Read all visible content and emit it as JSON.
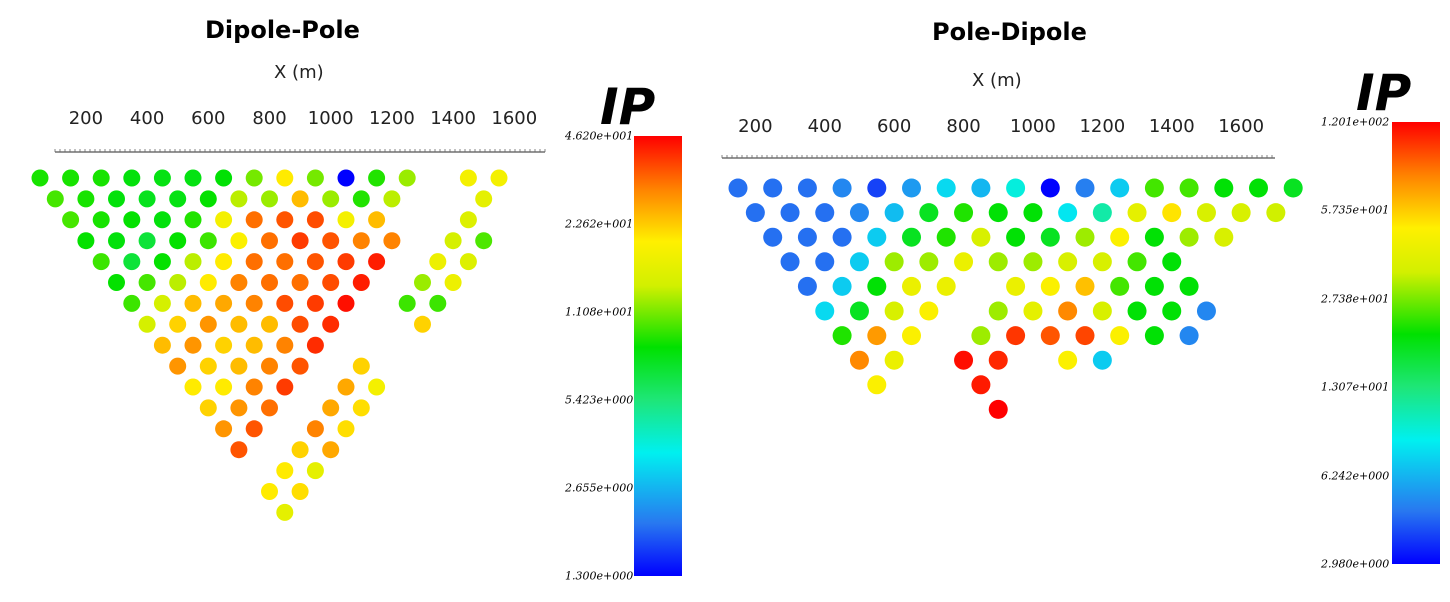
{
  "chart_data": [
    {
      "type": "scatter",
      "title": "Dipole-Pole",
      "xlabel": "X (m)",
      "x_ticks": [
        200,
        400,
        600,
        800,
        1000,
        1200,
        1400,
        1600
      ],
      "xlim": [
        50,
        1650
      ],
      "colorbar": {
        "title": "IP",
        "labels": [
          "4.620e+001",
          "2.262e+001",
          "1.108e+001",
          "5.423e+000",
          "2.655e+000",
          "1.300e+000"
        ],
        "min": 1.3,
        "max": 46.2,
        "scale": "log"
      },
      "rows": [
        {
          "level": 1,
          "x0": 50,
          "values": [
            8.8,
            8.8,
            8.8,
            8.0,
            7.8,
            7.8,
            8.2,
            11,
            20,
            11,
            1.3,
            9,
            12,
            null,
            18,
            18
          ]
        },
        {
          "level": 2,
          "x0": 100,
          "values": [
            9.8,
            8.8,
            8.0,
            7.5,
            7.8,
            8.4,
            13,
            12,
            24,
            12,
            9,
            13,
            null,
            null,
            16
          ]
        },
        {
          "level": 3,
          "x0": 150,
          "values": [
            9.8,
            8.8,
            8.4,
            8.0,
            9.0,
            18,
            32,
            35,
            36,
            18,
            24,
            null,
            null,
            15
          ]
        },
        {
          "level": 4,
          "x0": 200,
          "values": [
            8.4,
            8.0,
            6.8,
            8.4,
            9.6,
            19,
            32,
            38,
            35,
            30,
            30,
            null,
            14,
            10
          ]
        },
        {
          "level": 5,
          "x0": 250,
          "values": [
            9.6,
            6.8,
            8.4,
            13,
            20,
            32,
            32,
            35,
            38,
            42,
            null,
            17,
            15
          ]
        },
        {
          "level": 6,
          "x0": 300,
          "values": [
            8.4,
            9.8,
            13,
            20,
            30,
            32,
            32,
            36,
            42,
            null,
            12,
            17
          ]
        },
        {
          "level": 7,
          "x0": 350,
          "values": [
            9.6,
            14,
            24,
            26,
            30,
            36,
            38,
            44,
            null,
            9.6,
            9.6
          ]
        },
        {
          "level": 8,
          "x0": 400,
          "values": [
            14,
            22,
            28,
            24,
            24,
            36,
            40,
            null,
            null,
            22
          ]
        },
        {
          "level": 9,
          "x0": 450,
          "values": [
            24,
            28,
            22,
            24,
            30,
            40
          ]
        },
        {
          "level": 10,
          "x0": 500,
          "values": [
            28,
            22,
            24,
            30,
            35,
            null,
            22
          ]
        },
        {
          "level": 11,
          "x0": 550,
          "values": [
            20,
            20,
            30,
            38,
            null,
            26,
            18
          ]
        },
        {
          "level": 12,
          "x0": 600,
          "values": [
            22,
            28,
            32,
            null,
            26,
            21
          ]
        },
        {
          "level": 13,
          "x0": 650,
          "values": [
            28,
            35,
            null,
            30,
            21
          ]
        },
        {
          "level": 14,
          "x0": 700,
          "values": [
            35,
            null,
            22,
            26
          ]
        },
        {
          "level": 15,
          "x0": 750,
          "values": [
            null,
            20,
            16
          ]
        },
        {
          "level": 16,
          "x0": 800,
          "values": [
            20,
            21
          ]
        },
        {
          "level": 17,
          "x0": 850,
          "values": [
            16
          ]
        }
      ]
    },
    {
      "type": "scatter",
      "title": "Pole-Dipole",
      "xlabel": "X (m)",
      "x_ticks": [
        200,
        400,
        600,
        800,
        1000,
        1200,
        1400,
        1600
      ],
      "xlim": [
        100,
        1700
      ],
      "colorbar": {
        "title": "IP",
        "labels": [
          "1.201e+002",
          "5.735e+001",
          "2.738e+001",
          "1.307e+001",
          "6.242e+000",
          "2.980e+000"
        ],
        "min": 2.98,
        "max": 120.1,
        "scale": "log"
      },
      "rows": [
        {
          "level": 1,
          "x0": 150,
          "values": [
            4.5,
            4.5,
            4.5,
            5.0,
            3.8,
            5.5,
            7.5,
            6.3,
            9.0,
            3.0,
            4.8,
            7.0,
            24,
            24,
            20,
            20,
            18
          ]
        },
        {
          "level": 2,
          "x0": 200,
          "values": [
            4.5,
            4.5,
            4.5,
            5.0,
            6.5,
            18,
            22,
            20,
            20,
            8.0,
            11,
            40,
            52,
            36,
            36,
            34
          ]
        },
        {
          "level": 3,
          "x0": 250,
          "values": [
            4.5,
            4.5,
            4.5,
            7.0,
            18,
            22,
            36,
            20,
            18,
            30,
            48,
            20,
            30,
            36
          ]
        },
        {
          "level": 4,
          "x0": 300,
          "values": [
            4.5,
            4.5,
            7.0,
            30,
            30,
            42,
            30,
            30,
            36,
            36,
            24,
            20
          ]
        },
        {
          "level": 5,
          "x0": 350,
          "values": [
            4.5,
            7.0,
            20,
            42,
            42,
            null,
            42,
            48,
            60,
            24,
            20,
            20
          ]
        },
        {
          "level": 6,
          "x0": 400,
          "values": [
            7.5,
            18,
            36,
            48,
            null,
            30,
            40,
            75,
            36,
            20,
            20,
            5.0
          ]
        },
        {
          "level": 7,
          "x0": 450,
          "values": [
            22,
            70,
            48,
            null,
            30,
            100,
            90,
            95,
            48,
            20,
            5.0
          ]
        },
        {
          "level": 8,
          "x0": 500,
          "values": [
            75,
            42,
            null,
            115,
            105,
            null,
            48,
            7.0
          ]
        },
        {
          "level": 9,
          "x0": 550,
          "values": [
            48,
            null,
            null,
            110
          ]
        },
        {
          "level": 10,
          "x0": 900,
          "values": [
            120
          ]
        }
      ]
    }
  ]
}
